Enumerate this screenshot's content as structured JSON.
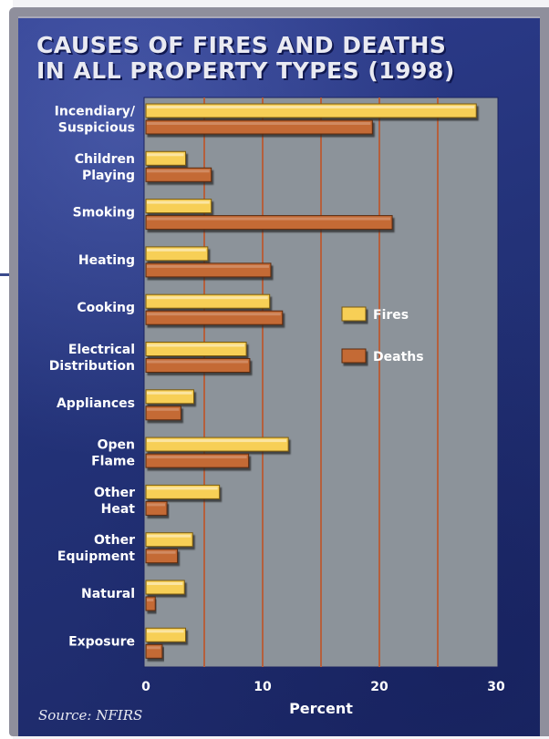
{
  "title_lines": [
    "CAUSES OF FIRES AND DEATHS",
    "IN ALL PROPERTY TYPES (1998)"
  ],
  "source": "Source: NFIRS",
  "colors": {
    "fires": "#f7cf57",
    "deaths": "#c46a35",
    "plot_bg": "#8c939a",
    "panel": "#26337d",
    "gridline": "#b55f3c"
  },
  "chart_data": {
    "type": "bar",
    "orientation": "horizontal",
    "title": "CAUSES OF FIRES AND DEATHS IN ALL PROPERTY TYPES (1998)",
    "xlabel": "Percent",
    "ylabel": "",
    "xlim": [
      0,
      30
    ],
    "xticks": [
      0,
      10,
      20,
      30
    ],
    "grid": true,
    "legend_position": "right, middle",
    "categories": [
      [
        "Incendiary/",
        "Suspicious"
      ],
      [
        "Children",
        "Playing"
      ],
      [
        "Smoking"
      ],
      [
        "Heating"
      ],
      [
        "Cooking"
      ],
      [
        "Electrical",
        "Distribution"
      ],
      [
        "Appliances"
      ],
      [
        "Open",
        "Flame"
      ],
      [
        "Other",
        "Heat"
      ],
      [
        "Other",
        "Equipment"
      ],
      [
        "Natural"
      ],
      [
        "Exposure"
      ]
    ],
    "series": [
      {
        "name": "Fires",
        "values": [
          28.3,
          3.4,
          5.6,
          5.3,
          10.6,
          8.6,
          4.1,
          12.2,
          6.3,
          4.0,
          3.3,
          3.4
        ]
      },
      {
        "name": "Deaths",
        "values": [
          19.4,
          5.6,
          21.1,
          10.7,
          11.7,
          8.9,
          3.0,
          8.8,
          1.8,
          2.7,
          0.8,
          1.4
        ]
      }
    ]
  }
}
